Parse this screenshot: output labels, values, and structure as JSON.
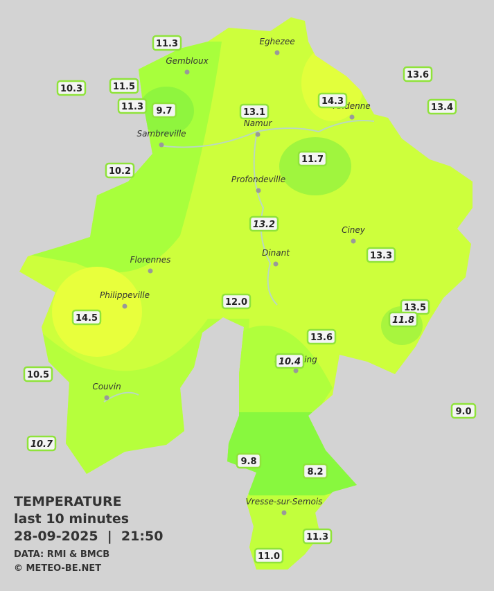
{
  "title": {
    "heading": "TEMPERATURE",
    "period": "last 10 minutes",
    "timestamp": "28-09-2025  |  21:50",
    "source": "DATA: RMI & BMCB",
    "copyright": "© METEO-BE.NET"
  },
  "cities": [
    "Eghezee",
    "Gembloux",
    "Andenne",
    "Namur",
    "Sambreville",
    "Profondeville",
    "Ciney",
    "Dinant",
    "Florennes",
    "Philippeville",
    "Beauraing",
    "Couvin",
    "Vresse-sur-Semois"
  ],
  "stations": [
    {
      "label": "11.3"
    },
    {
      "label": "10.3"
    },
    {
      "label": "11.5"
    },
    {
      "label": "11.3"
    },
    {
      "label": "9.7"
    },
    {
      "label": "13.1"
    },
    {
      "label": "14.3"
    },
    {
      "label": "13.6"
    },
    {
      "label": "13.4"
    },
    {
      "label": "10.2"
    },
    {
      "label": "11.7"
    },
    {
      "label": "13.2",
      "italic": true
    },
    {
      "label": "13.3"
    },
    {
      "label": "12.0"
    },
    {
      "label": "14.5"
    },
    {
      "label": "13.5"
    },
    {
      "label": "11.8",
      "italic": true
    },
    {
      "label": "13.6"
    },
    {
      "label": "10.4",
      "italic": true
    },
    {
      "label": "10.5"
    },
    {
      "label": "9.0"
    },
    {
      "label": "10.7",
      "italic": true
    },
    {
      "label": "9.8"
    },
    {
      "label": "8.2"
    },
    {
      "label": "11.3"
    },
    {
      "label": "11.0"
    }
  ]
}
